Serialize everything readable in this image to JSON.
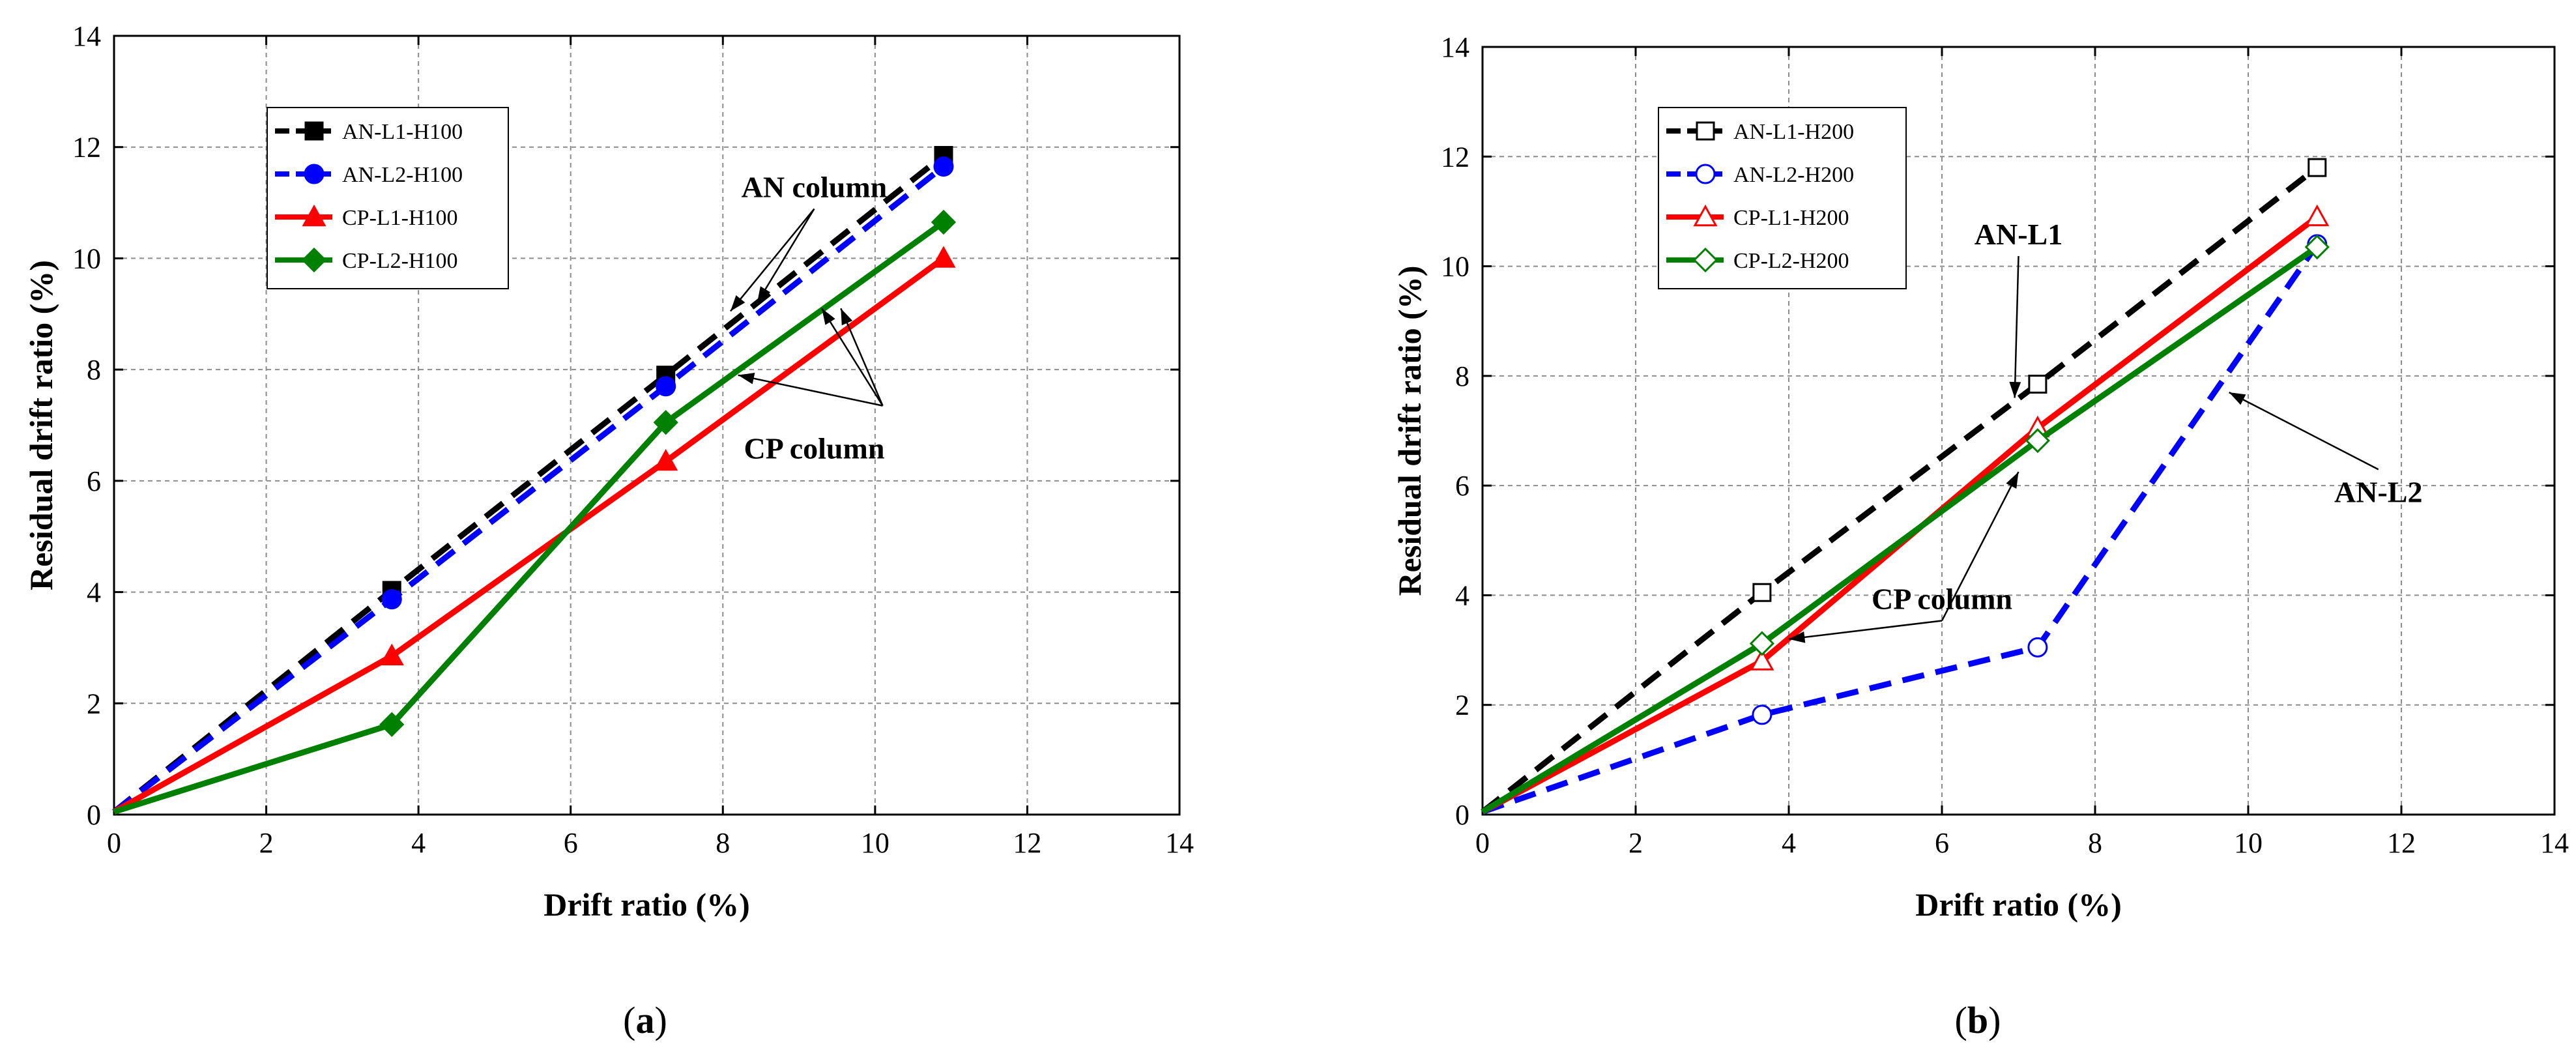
{
  "chart_data": [
    {
      "type": "line",
      "panel_label": "a",
      "title": "",
      "xlabel": "Drift ratio (%)",
      "ylabel": "Residual drift ratio (%)",
      "xlim": [
        0,
        14
      ],
      "ylim": [
        0,
        14
      ],
      "xticks": [
        "0",
        "2",
        "4",
        "6",
        "8",
        "10",
        "12",
        "14"
      ],
      "yticks": [
        "0",
        "2",
        "4",
        "6",
        "8",
        "10",
        "12",
        "14"
      ],
      "grid": true,
      "legend_position": "top-left",
      "series": [
        {
          "name": "AN-L1-H100",
          "color": "#000000",
          "dash": "dashed",
          "marker": "square",
          "filled": true,
          "x": [
            0,
            3.65,
            7.25,
            10.9
          ],
          "y": [
            0.05,
            4.03,
            7.9,
            11.85
          ]
        },
        {
          "name": "AN-L2-H100",
          "color": "#0000ff",
          "dash": "dashed",
          "marker": "circle",
          "filled": true,
          "x": [
            0,
            3.65,
            7.25,
            10.9
          ],
          "y": [
            0.05,
            3.87,
            7.7,
            11.65
          ]
        },
        {
          "name": "CP-L1-H100",
          "color": "#ff0000",
          "dash": "solid",
          "marker": "triangle",
          "filled": true,
          "x": [
            0,
            3.65,
            7.25,
            10.9
          ],
          "y": [
            0.05,
            2.85,
            6.35,
            10.0
          ]
        },
        {
          "name": "CP-L2-H100",
          "color": "#008000",
          "dash": "solid",
          "marker": "diamond",
          "filled": true,
          "x": [
            0,
            3.65,
            7.25,
            10.9
          ],
          "y": [
            0.05,
            1.62,
            7.05,
            10.65
          ]
        }
      ],
      "annotations": [
        {
          "text": "AN column",
          "x": 9.2,
          "y": 11.1,
          "arrows": [
            [
              8.1,
              9.05
            ],
            [
              8.45,
              9.2
            ]
          ]
        },
        {
          "text": "CP column",
          "x": 9.2,
          "y": 6.4,
          "arrows": [
            [
              9.3,
              9.1
            ],
            [
              9.55,
              9.1
            ],
            [
              8.2,
              7.9
            ]
          ],
          "arrow_from": [
            10.1,
            7.35
          ]
        }
      ]
    },
    {
      "type": "line",
      "panel_label": "b",
      "title": "",
      "xlabel": "Drift ratio (%)",
      "ylabel": "Residual drift ratio (%)",
      "xlim": [
        0,
        14
      ],
      "ylim": [
        0,
        14
      ],
      "xticks": [
        "0",
        "2",
        "4",
        "6",
        "8",
        "10",
        "12",
        "14"
      ],
      "yticks": [
        "0",
        "2",
        "4",
        "6",
        "8",
        "10",
        "12",
        "14"
      ],
      "grid": true,
      "legend_position": "top-left",
      "series": [
        {
          "name": "AN-L1-H200",
          "color": "#000000",
          "dash": "dashed",
          "marker": "square",
          "filled": false,
          "x": [
            0,
            3.65,
            7.25,
            10.9
          ],
          "y": [
            0.05,
            4.05,
            7.85,
            11.8
          ]
        },
        {
          "name": "AN-L2-H200",
          "color": "#0000ff",
          "dash": "dashed",
          "marker": "circle",
          "filled": false,
          "x": [
            0,
            3.65,
            7.25,
            10.9
          ],
          "y": [
            0.05,
            1.82,
            3.05,
            10.4
          ]
        },
        {
          "name": "CP-L1-H200",
          "color": "#ff0000",
          "dash": "solid",
          "marker": "triangle",
          "filled": false,
          "x": [
            0,
            3.65,
            7.25,
            10.9
          ],
          "y": [
            0.05,
            2.8,
            7.05,
            10.9
          ]
        },
        {
          "name": "CP-L2-H200",
          "color": "#008000",
          "dash": "solid",
          "marker": "diamond",
          "filled": false,
          "x": [
            0,
            3.65,
            7.25,
            10.9
          ],
          "y": [
            0.05,
            3.12,
            6.82,
            10.35
          ]
        }
      ],
      "annotations": [
        {
          "text": "AN-L1",
          "x": 7.0,
          "y": 10.4,
          "arrows": [
            [
              6.95,
              7.6
            ]
          ]
        },
        {
          "text": "AN-L2",
          "x": 11.7,
          "y": 5.7,
          "arrows": [
            [
              9.75,
              7.7
            ]
          ]
        },
        {
          "text": "CP column",
          "x": 6.0,
          "y": 3.75,
          "arrows": [
            [
              4.0,
              3.2
            ],
            [
              7.0,
              6.25
            ]
          ]
        }
      ]
    }
  ]
}
